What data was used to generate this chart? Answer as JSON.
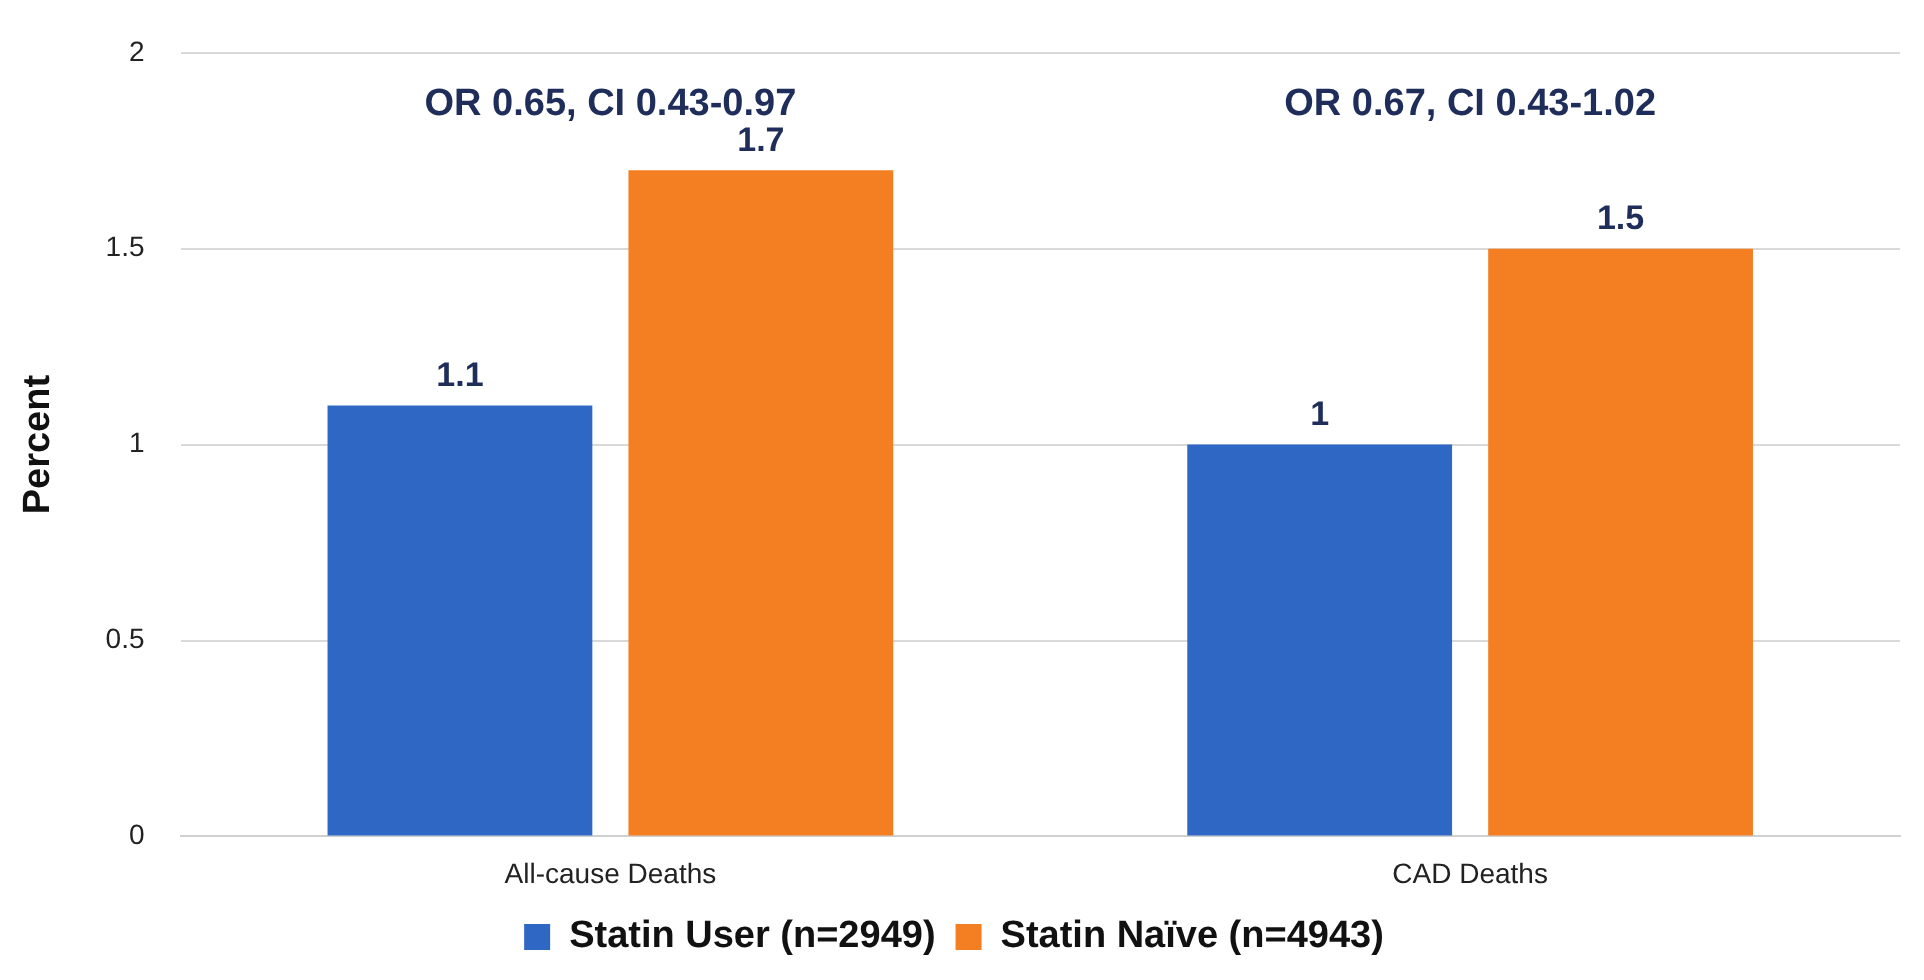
{
  "chart_data": {
    "type": "bar",
    "ylabel": "Percent",
    "categories": [
      "All-cause Deaths",
      "CAD Deaths"
    ],
    "series": [
      {
        "name": "Statin User (n=2949)",
        "color": "#2f68c4",
        "values": [
          1.1,
          1
        ]
      },
      {
        "name": "Statin Naïve (n=4943)",
        "color": "#f47f22",
        "values": [
          1.7,
          1.5
        ]
      }
    ],
    "ylim": [
      0,
      2
    ],
    "yticks": [
      0,
      0.5,
      1,
      1.5,
      2
    ],
    "grid": "y",
    "legend": "bottom",
    "data_labels": true,
    "annotations": [
      "OR 0.65, CI 0.43-0.97",
      "OR 0.67, CI 0.43-1.02"
    ]
  }
}
